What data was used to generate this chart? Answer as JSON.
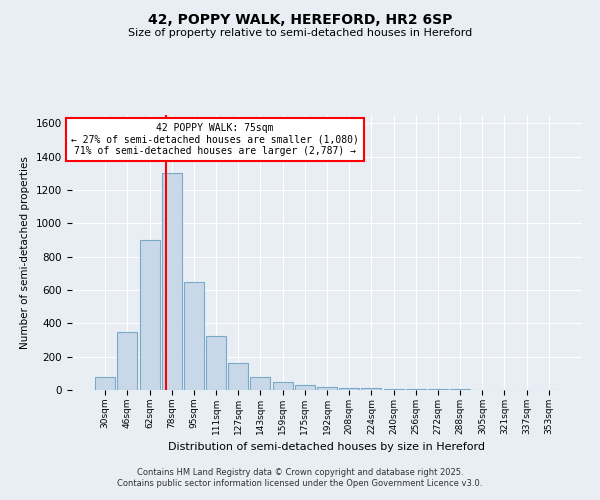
{
  "title": "42, POPPY WALK, HEREFORD, HR2 6SP",
  "subtitle": "Size of property relative to semi-detached houses in Hereford",
  "xlabel": "Distribution of semi-detached houses by size in Hereford",
  "ylabel": "Number of semi-detached properties",
  "categories": [
    "30sqm",
    "46sqm",
    "62sqm",
    "78sqm",
    "95sqm",
    "111sqm",
    "127sqm",
    "143sqm",
    "159sqm",
    "175sqm",
    "192sqm",
    "208sqm",
    "224sqm",
    "240sqm",
    "256sqm",
    "272sqm",
    "288sqm",
    "305sqm",
    "321sqm",
    "337sqm",
    "353sqm"
  ],
  "values": [
    80,
    350,
    900,
    1300,
    650,
    325,
    160,
    80,
    50,
    30,
    20,
    15,
    10,
    7,
    5,
    5,
    4,
    3,
    2,
    1,
    1
  ],
  "bar_color": "#c8d8e8",
  "bar_edge_color": "#7aaac8",
  "red_line_x": 2.75,
  "annotation_title": "42 POPPY WALK: 75sqm",
  "annotation_line1": "← 27% of semi-detached houses are smaller (1,080)",
  "annotation_line2": "71% of semi-detached houses are larger (2,787) →",
  "ylim": [
    0,
    1650
  ],
  "yticks": [
    0,
    200,
    400,
    600,
    800,
    1000,
    1200,
    1400,
    1600
  ],
  "background_color": "#e8eef4",
  "plot_bg_color": "#e8eef4",
  "footer_line1": "Contains HM Land Registry data © Crown copyright and database right 2025.",
  "footer_line2": "Contains public sector information licensed under the Open Government Licence v3.0."
}
